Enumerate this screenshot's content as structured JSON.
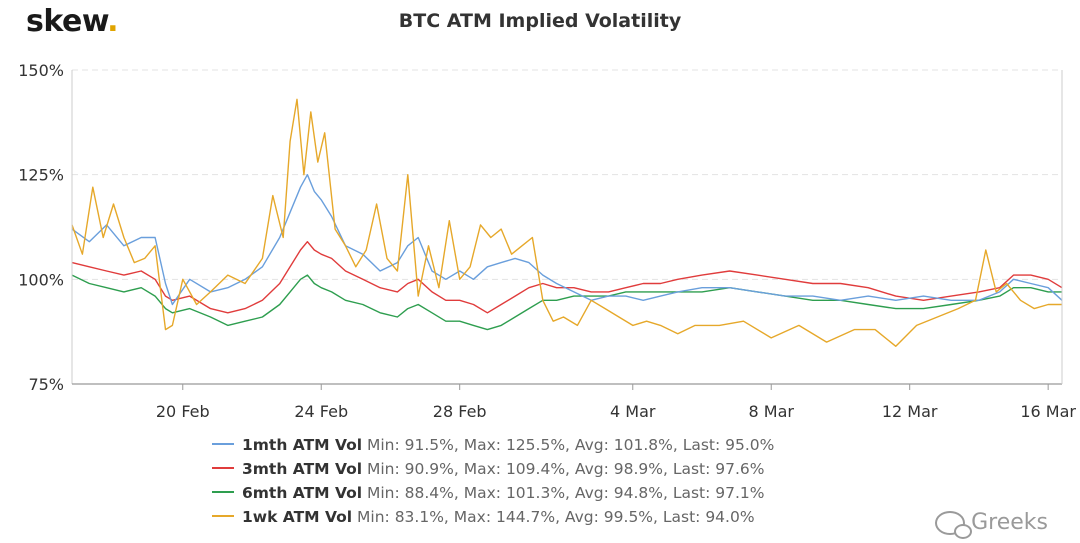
{
  "brand": {
    "logo_text": "skew",
    "logo_dot": ".",
    "accent": "#e0a400"
  },
  "watermark": {
    "text": "Greeks",
    "icon": "wechat-icon"
  },
  "chart_data": {
    "type": "line",
    "title": "BTC ATM Implied Volatility",
    "xlabel": "",
    "ylabel": "",
    "y_ticks": [
      "75%",
      "100%",
      "125%",
      "150%"
    ],
    "ylim": [
      75,
      150
    ],
    "x_ticks": [
      {
        "label": "20 Feb",
        "day": 20
      },
      {
        "label": "24 Feb",
        "day": 24
      },
      {
        "label": "28 Feb",
        "day": 28
      },
      {
        "label": "4 Mar",
        "day": 33
      },
      {
        "label": "8 Mar",
        "day": 37
      },
      {
        "label": "12 Mar",
        "day": 41
      },
      {
        "label": "16 Mar",
        "day": 45
      }
    ],
    "xlim": [
      16.8,
      45.4
    ],
    "grid": "horizontal dashed",
    "legend_position": "bottom",
    "series": [
      {
        "name": "1mth ATM Vol",
        "stats": "Min: 91.5%, Max: 125.5%, Avg: 101.8%, Last: 95.0%",
        "color": "#6a9fdc",
        "x": [
          16.8,
          17.3,
          17.8,
          18.3,
          18.8,
          19.2,
          19.5,
          19.7,
          20.2,
          20.8,
          21.3,
          21.8,
          22.3,
          22.8,
          23.1,
          23.4,
          23.6,
          23.8,
          24.0,
          24.3,
          24.7,
          25.2,
          25.7,
          26.2,
          26.5,
          26.8,
          27.2,
          27.6,
          28.0,
          28.4,
          28.8,
          29.2,
          29.6,
          30.0,
          30.4,
          30.8,
          31.3,
          31.8,
          32.3,
          32.8,
          33.3,
          33.8,
          34.3,
          35.0,
          35.8,
          36.6,
          37.4,
          38.2,
          39.0,
          39.8,
          40.6,
          41.4,
          42.2,
          43.0,
          43.6,
          44.0,
          44.5,
          45.0,
          45.4
        ],
        "y": [
          112,
          109,
          113,
          108,
          110,
          110,
          99,
          94,
          100,
          97,
          98,
          100,
          103,
          110,
          116,
          122,
          125,
          121,
          119,
          115,
          108,
          106,
          102,
          104,
          108,
          110,
          102,
          100,
          102,
          100,
          103,
          104,
          105,
          104,
          101,
          99,
          97,
          95,
          96,
          96,
          95,
          96,
          97,
          98,
          98,
          97,
          96,
          96,
          95,
          96,
          95,
          96,
          95,
          95,
          97,
          100,
          99,
          98,
          95
        ]
      },
      {
        "name": "3mth ATM Vol",
        "stats": "Min: 90.9%, Max: 109.4%, Avg: 98.9%, Last: 97.6%",
        "color": "#e03c3c",
        "x": [
          16.8,
          17.3,
          17.8,
          18.3,
          18.8,
          19.2,
          19.5,
          19.7,
          20.2,
          20.8,
          21.3,
          21.8,
          22.3,
          22.8,
          23.1,
          23.4,
          23.6,
          23.8,
          24.0,
          24.3,
          24.7,
          25.2,
          25.7,
          26.2,
          26.5,
          26.8,
          27.2,
          27.6,
          28.0,
          28.4,
          28.8,
          29.2,
          29.6,
          30.0,
          30.4,
          30.8,
          31.3,
          31.8,
          32.3,
          32.8,
          33.3,
          33.8,
          34.3,
          35.0,
          35.8,
          36.6,
          37.4,
          38.2,
          39.0,
          39.8,
          40.6,
          41.4,
          42.2,
          43.0,
          43.6,
          44.0,
          44.5,
          45.0,
          45.4
        ],
        "y": [
          104,
          103,
          102,
          101,
          102,
          100,
          96,
          95,
          96,
          93,
          92,
          93,
          95,
          99,
          103,
          107,
          109,
          107,
          106,
          105,
          102,
          100,
          98,
          97,
          99,
          100,
          97,
          95,
          95,
          94,
          92,
          94,
          96,
          98,
          99,
          98,
          98,
          97,
          97,
          98,
          99,
          99,
          100,
          101,
          102,
          101,
          100,
          99,
          99,
          98,
          96,
          95,
          96,
          97,
          98,
          101,
          101,
          100,
          98
        ]
      },
      {
        "name": "6mth ATM Vol",
        "stats": "Min: 88.4%, Max: 101.3%, Avg: 94.8%, Last: 97.1%",
        "color": "#2e9e4f",
        "x": [
          16.8,
          17.3,
          17.8,
          18.3,
          18.8,
          19.2,
          19.5,
          19.7,
          20.2,
          20.8,
          21.3,
          21.8,
          22.3,
          22.8,
          23.1,
          23.4,
          23.6,
          23.8,
          24.0,
          24.3,
          24.7,
          25.2,
          25.7,
          26.2,
          26.5,
          26.8,
          27.2,
          27.6,
          28.0,
          28.4,
          28.8,
          29.2,
          29.6,
          30.0,
          30.4,
          30.8,
          31.3,
          31.8,
          32.3,
          32.8,
          33.3,
          33.8,
          34.3,
          35.0,
          35.8,
          36.6,
          37.4,
          38.2,
          39.0,
          39.8,
          40.6,
          41.4,
          42.2,
          43.0,
          43.6,
          44.0,
          44.5,
          45.0,
          45.4
        ],
        "y": [
          101,
          99,
          98,
          97,
          98,
          96,
          93,
          92,
          93,
          91,
          89,
          90,
          91,
          94,
          97,
          100,
          101,
          99,
          98,
          97,
          95,
          94,
          92,
          91,
          93,
          94,
          92,
          90,
          90,
          89,
          88,
          89,
          91,
          93,
          95,
          95,
          96,
          96,
          96,
          97,
          97,
          97,
          97,
          97,
          98,
          97,
          96,
          95,
          95,
          94,
          93,
          93,
          94,
          95,
          96,
          98,
          98,
          97,
          97
        ]
      },
      {
        "name": "1wk ATM Vol",
        "stats": "Min: 83.1%, Max: 144.7%, Avg: 99.5%, Last: 94.0%",
        "color": "#e6a82a",
        "x": [
          16.8,
          17.1,
          17.4,
          17.7,
          18.0,
          18.3,
          18.6,
          18.9,
          19.2,
          19.5,
          19.7,
          20.0,
          20.4,
          20.8,
          21.3,
          21.8,
          22.3,
          22.6,
          22.9,
          23.1,
          23.3,
          23.5,
          23.7,
          23.9,
          24.1,
          24.4,
          24.7,
          25.0,
          25.3,
          25.6,
          25.9,
          26.2,
          26.5,
          26.8,
          27.1,
          27.4,
          27.7,
          28.0,
          28.3,
          28.6,
          28.9,
          29.2,
          29.5,
          29.8,
          30.1,
          30.4,
          30.7,
          31.0,
          31.4,
          31.8,
          32.2,
          32.6,
          33.0,
          33.4,
          33.8,
          34.3,
          34.8,
          35.5,
          36.2,
          37.0,
          37.8,
          38.6,
          39.4,
          40.0,
          40.6,
          41.2,
          41.8,
          42.4,
          42.9,
          43.2,
          43.5,
          43.8,
          44.2,
          44.6,
          45.0,
          45.4
        ],
        "y": [
          113,
          106,
          122,
          110,
          118,
          110,
          104,
          105,
          108,
          88,
          89,
          100,
          94,
          97,
          101,
          99,
          105,
          120,
          110,
          133,
          143,
          125,
          140,
          128,
          135,
          112,
          108,
          103,
          107,
          118,
          105,
          102,
          125,
          96,
          108,
          98,
          114,
          100,
          103,
          113,
          110,
          112,
          106,
          108,
          110,
          95,
          90,
          91,
          89,
          95,
          93,
          91,
          89,
          90,
          89,
          87,
          89,
          89,
          90,
          86,
          89,
          85,
          88,
          88,
          84,
          89,
          91,
          93,
          95,
          107,
          97,
          99,
          95,
          93,
          94,
          94
        ]
      }
    ]
  }
}
